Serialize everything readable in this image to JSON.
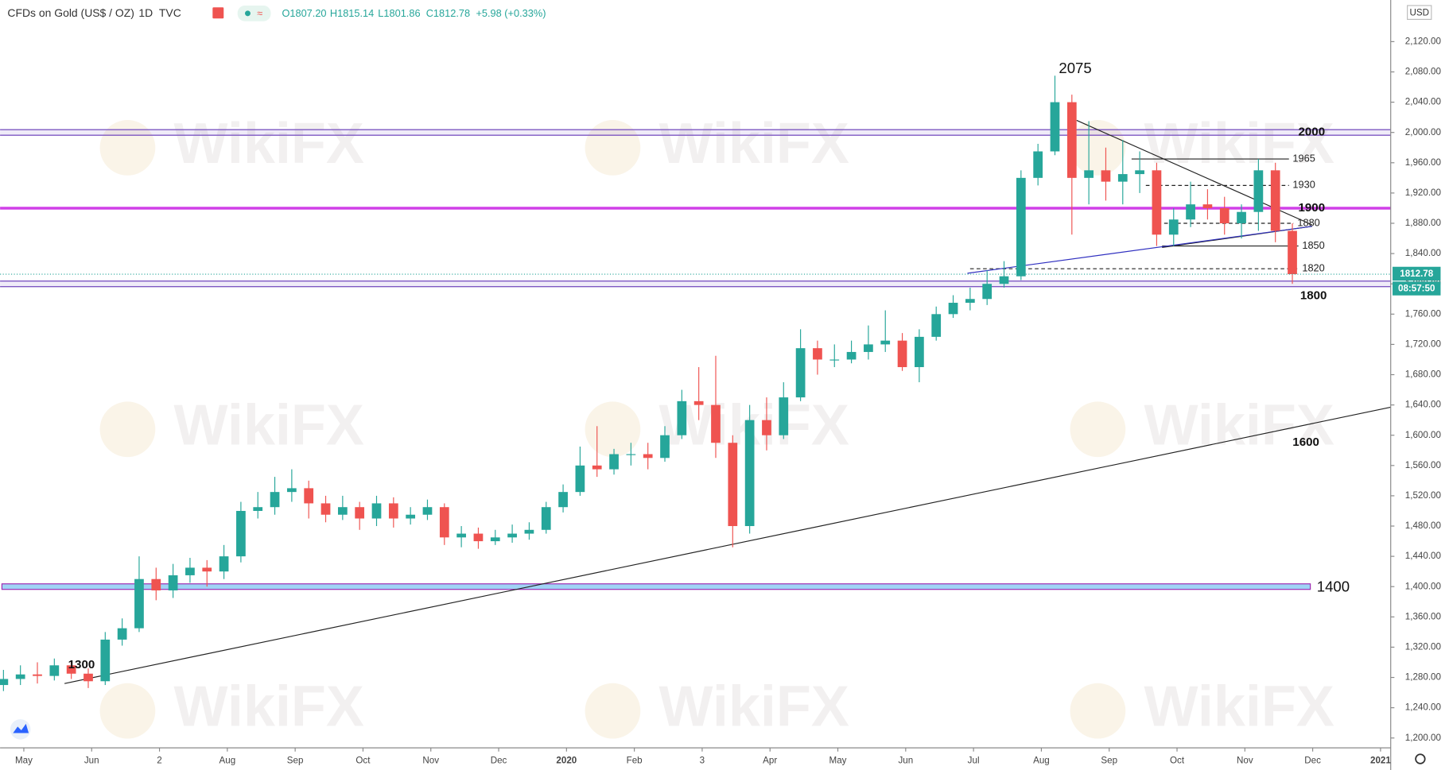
{
  "header": {
    "symbol": "CFDs on Gold (US$ / OZ)",
    "interval": "1D",
    "source": "TVC",
    "open": "O1807.20",
    "high": "H1815.14",
    "low": "L1801.86",
    "close": "C1812.78",
    "change": "+5.98 (+0.33%)"
  },
  "currency": "USD",
  "watermark": "WikiFX",
  "countdown": "08:57:50",
  "chart_data": {
    "type": "candlestick",
    "x": [
      -0.3,
      -0.05,
      0.2,
      0.45,
      0.7,
      0.95,
      1.2,
      1.45,
      1.7,
      1.95,
      2.2,
      2.45,
      2.7,
      2.95,
      3.2,
      3.45,
      3.7,
      3.95,
      4.2,
      4.45,
      4.7,
      4.95,
      5.2,
      5.45,
      5.7,
      5.95,
      6.2,
      6.45,
      6.7,
      6.95,
      7.2,
      7.45,
      7.7,
      7.95,
      8.2,
      8.45,
      8.7,
      8.95,
      9.2,
      9.45,
      9.7,
      9.95,
      10.2,
      10.45,
      10.7,
      10.95,
      11.2,
      11.45,
      11.7,
      11.95,
      12.2,
      12.45,
      12.7,
      12.95,
      13.2,
      13.45,
      13.7,
      13.95,
      14.2,
      14.45,
      14.7,
      14.95,
      15.2,
      15.45,
      15.7,
      15.95,
      16.2,
      16.45,
      16.7,
      16.95,
      17.2,
      17.45,
      17.7,
      17.95,
      18.2,
      18.45,
      18.7
    ],
    "open": [
      1270,
      1278,
      1284,
      1282,
      1296,
      1285,
      1275,
      1330,
      1345,
      1410,
      1395,
      1415,
      1425,
      1420,
      1440,
      1500,
      1505,
      1525,
      1530,
      1510,
      1495,
      1505,
      1490,
      1510,
      1490,
      1495,
      1505,
      1465,
      1470,
      1460,
      1465,
      1470,
      1475,
      1505,
      1525,
      1560,
      1555,
      1575,
      1575,
      1570,
      1600,
      1645,
      1640,
      1590,
      1480,
      1620,
      1600,
      1650,
      1715,
      1700,
      1700,
      1710,
      1720,
      1725,
      1690,
      1730,
      1760,
      1775,
      1780,
      1800,
      1810,
      1940,
      1975,
      2040,
      1940,
      1950,
      1935,
      1945,
      1950,
      1865,
      1885,
      1905,
      1900,
      1880,
      1895,
      1950,
      1870
    ],
    "high": [
      1290,
      1296,
      1300,
      1305,
      1302,
      1292,
      1340,
      1358,
      1440,
      1425,
      1430,
      1438,
      1435,
      1455,
      1512,
      1525,
      1545,
      1555,
      1540,
      1520,
      1520,
      1512,
      1520,
      1518,
      1505,
      1515,
      1510,
      1480,
      1478,
      1475,
      1482,
      1485,
      1512,
      1535,
      1585,
      1612,
      1582,
      1590,
      1590,
      1612,
      1660,
      1690,
      1705,
      1600,
      1640,
      1650,
      1670,
      1740,
      1725,
      1720,
      1725,
      1745,
      1765,
      1735,
      1740,
      1770,
      1785,
      1795,
      1818,
      1830,
      1950,
      1985,
      2075,
      2050,
      2015,
      1980,
      1990,
      1975,
      1960,
      1900,
      1935,
      1925,
      1915,
      1905,
      1965,
      1960,
      1880
    ],
    "low": [
      1262,
      1270,
      1272,
      1276,
      1278,
      1266,
      1270,
      1322,
      1340,
      1382,
      1385,
      1405,
      1400,
      1410,
      1432,
      1490,
      1495,
      1512,
      1490,
      1485,
      1488,
      1475,
      1480,
      1478,
      1482,
      1488,
      1455,
      1452,
      1450,
      1455,
      1458,
      1462,
      1470,
      1498,
      1520,
      1545,
      1548,
      1560,
      1555,
      1565,
      1595,
      1620,
      1570,
      1452,
      1470,
      1580,
      1595,
      1645,
      1680,
      1690,
      1695,
      1700,
      1710,
      1685,
      1670,
      1725,
      1755,
      1765,
      1772,
      1795,
      1805,
      1930,
      1970,
      1865,
      1905,
      1910,
      1905,
      1920,
      1850,
      1850,
      1875,
      1885,
      1865,
      1860,
      1870,
      1855,
      1800
    ],
    "close": [
      1278,
      1284,
      1282,
      1296,
      1285,
      1275,
      1330,
      1345,
      1410,
      1395,
      1415,
      1425,
      1420,
      1440,
      1500,
      1505,
      1525,
      1530,
      1510,
      1495,
      1505,
      1490,
      1510,
      1490,
      1495,
      1505,
      1465,
      1470,
      1460,
      1465,
      1470,
      1475,
      1505,
      1525,
      1560,
      1555,
      1575,
      1575,
      1570,
      1600,
      1645,
      1640,
      1590,
      1480,
      1620,
      1600,
      1650,
      1715,
      1700,
      1700,
      1710,
      1720,
      1725,
      1690,
      1730,
      1760,
      1775,
      1780,
      1800,
      1810,
      1940,
      1975,
      2040,
      1940,
      1950,
      1935,
      1945,
      1950,
      1865,
      1885,
      1905,
      1900,
      1880,
      1895,
      1950,
      1870,
      1812.78
    ],
    "up_color": "#26a69a",
    "down_color": "#ef5350",
    "xlim": [
      -0.35,
      20.15
    ],
    "xticks": [
      {
        "value": 0,
        "label": "May"
      },
      {
        "value": 1,
        "label": "Jun"
      },
      {
        "value": 2,
        "label": "2"
      },
      {
        "value": 3,
        "label": "Aug"
      },
      {
        "value": 4,
        "label": "Sep"
      },
      {
        "value": 5,
        "label": "Oct"
      },
      {
        "value": 6,
        "label": "Nov"
      },
      {
        "value": 7,
        "label": "Dec"
      },
      {
        "value": 8,
        "label": "2020"
      },
      {
        "value": 9,
        "label": "Feb"
      },
      {
        "value": 10,
        "label": "3"
      },
      {
        "value": 11,
        "label": "Apr"
      },
      {
        "value": 12,
        "label": "May"
      },
      {
        "value": 13,
        "label": "Jun"
      },
      {
        "value": 14,
        "label": "Jul"
      },
      {
        "value": 15,
        "label": "Aug"
      },
      {
        "value": 16,
        "label": "Sep"
      },
      {
        "value": 17,
        "label": "Oct"
      },
      {
        "value": 18,
        "label": "Nov"
      },
      {
        "value": 19,
        "label": "Dec"
      },
      {
        "value": 20,
        "label": "2021"
      }
    ],
    "ylim": [
      1187,
      2175
    ],
    "yticks": [
      {
        "value": 1200,
        "label": "1,200.00"
      },
      {
        "value": 1240,
        "label": "1,240.00"
      },
      {
        "value": 1280,
        "label": "1,280.00"
      },
      {
        "value": 1320,
        "label": "1,320.00"
      },
      {
        "value": 1360,
        "label": "1,360.00"
      },
      {
        "value": 1400,
        "label": "1,400.00"
      },
      {
        "value": 1440,
        "label": "1,440.00"
      },
      {
        "value": 1480,
        "label": "1,480.00"
      },
      {
        "value": 1520,
        "label": "1,520.00"
      },
      {
        "value": 1560,
        "label": "1,560.00"
      },
      {
        "value": 1600,
        "label": "1,600.00"
      },
      {
        "value": 1640,
        "label": "1,640.00"
      },
      {
        "value": 1680,
        "label": "1,680.00"
      },
      {
        "value": 1720,
        "label": "1,720.00"
      },
      {
        "value": 1760,
        "label": "1,760.00"
      },
      {
        "value": 1800,
        "label": "1,800.00"
      },
      {
        "value": 1840,
        "label": "1,840.00"
      },
      {
        "value": 1880,
        "label": "1,880.00"
      },
      {
        "value": 1920,
        "label": "1,920.00"
      },
      {
        "value": 1960,
        "label": "1,960.00"
      },
      {
        "value": 2000,
        "label": "2,000.00"
      },
      {
        "value": 2040,
        "label": "2,040.00"
      },
      {
        "value": 2080,
        "label": "2,080.00"
      },
      {
        "value": 2120,
        "label": "2,120.00"
      }
    ],
    "last_price": 1812.78,
    "levels": [
      {
        "value": 2000,
        "style": "band",
        "color": "#7e57c2"
      },
      {
        "value": 1900,
        "style": "line",
        "color": "#d040e8"
      },
      {
        "value": 1800,
        "style": "band",
        "color": "#7e57c2"
      },
      {
        "value": 1400,
        "style": "zone",
        "color": "#9c27b0"
      }
    ],
    "short_levels": [
      {
        "value": 1965,
        "from": 16.33,
        "to": 18.65,
        "dashed": false
      },
      {
        "value": 1930,
        "from": 16.54,
        "to": 18.65,
        "dashed": true
      },
      {
        "value": 1880,
        "from": 16.81,
        "to": 18.72,
        "dashed": true
      },
      {
        "value": 1850,
        "from": 16.78,
        "to": 18.79,
        "dashed": false
      },
      {
        "value": 1820,
        "from": 13.95,
        "to": 18.79,
        "dashed": true
      }
    ],
    "trendlines": [
      {
        "x": [
          0.6,
          20.15
        ],
        "y": [
          1272,
          1637
        ],
        "color": "#222222"
      },
      {
        "x": [
          15.52,
          18.99
        ],
        "y": [
          2016,
          1878
        ],
        "color": "#222222"
      },
      {
        "x": [
          16.78,
          18.99
        ],
        "y": [
          1848,
          1876
        ],
        "color": "#222222"
      },
      {
        "x": [
          13.91,
          18.99
        ],
        "y": [
          1814,
          1876
        ],
        "color": "#3030c0"
      }
    ],
    "point_labels": [
      {
        "value": 2075,
        "x": 15.5
      },
      {
        "value": 1300,
        "x": 0.85
      },
      {
        "value": 1600,
        "x": 18.9
      }
    ]
  }
}
